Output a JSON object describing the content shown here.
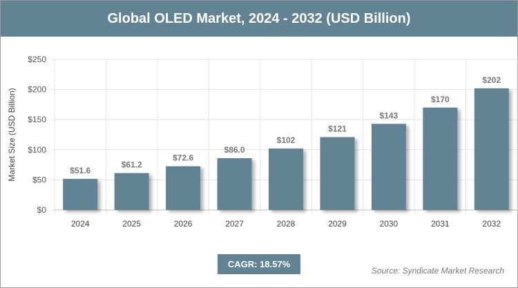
{
  "header": {
    "title": "Global OLED Market, 2024 - 2032 (USD Billion)"
  },
  "chart_data": {
    "type": "bar",
    "title": "Global OLED Market, 2024 - 2032 (USD Billion)",
    "ylabel": "Market Size (USD Billion)",
    "xlabel": "",
    "categories": [
      "2024",
      "2025",
      "2026",
      "2027",
      "2028",
      "2029",
      "2030",
      "2031",
      "2032"
    ],
    "values": [
      51.6,
      61.2,
      72.6,
      86.0,
      102,
      121,
      143,
      170,
      202
    ],
    "data_labels": [
      "$51.6",
      "$61.2",
      "$72.6",
      "$86.0",
      "$102",
      "$121",
      "$143",
      "$170",
      "$202"
    ],
    "ylim": [
      0,
      250
    ],
    "yticks": [
      0,
      50,
      100,
      150,
      200,
      250
    ],
    "ytick_labels": [
      "$0",
      "$50",
      "$100",
      "$150",
      "$200",
      "$250"
    ],
    "grid": true,
    "bar_color": "#628393"
  },
  "footer": {
    "cagr": "CAGR: 18.57%",
    "source": "Source: Syndicate Market Research"
  }
}
